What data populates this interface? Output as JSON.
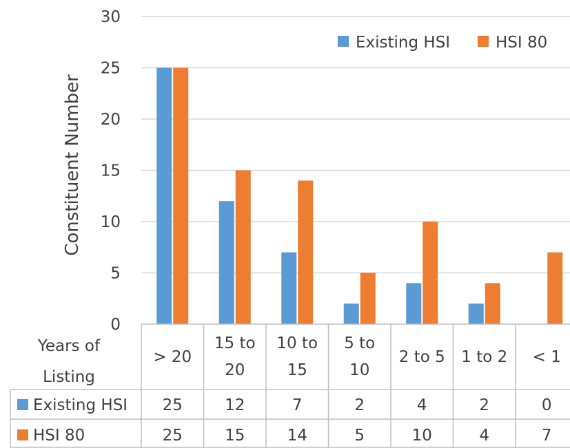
{
  "chart_data": {
    "type": "bar",
    "title": "",
    "ylabel": "Constituent Number",
    "xlabel": "",
    "ylim": [
      0,
      30
    ],
    "yticks": [
      0,
      5,
      10,
      15,
      20,
      25,
      30
    ],
    "grid": true,
    "legend": "top-right",
    "categories": [
      "> 20",
      "15 to 20",
      "10 to 15",
      "5 to 10",
      "2 to 5",
      "1 to 2",
      "< 1"
    ],
    "category_lines": [
      [
        "> 20"
      ],
      [
        "15 to",
        "20"
      ],
      [
        "10 to",
        "15"
      ],
      [
        "5 to",
        "10"
      ],
      [
        "2 to 5"
      ],
      [
        "1 to 2"
      ],
      [
        "< 1"
      ]
    ],
    "series": [
      {
        "name": "Existing HSI",
        "values": [
          25,
          12,
          7,
          2,
          4,
          2,
          0
        ],
        "color": "#5B9BD5"
      },
      {
        "name": "HSI 80",
        "values": [
          25,
          15,
          14,
          5,
          10,
          4,
          7
        ],
        "color": "#ED7D31"
      }
    ],
    "table": {
      "header_lines": [
        "Years of",
        "Listing"
      ]
    }
  }
}
